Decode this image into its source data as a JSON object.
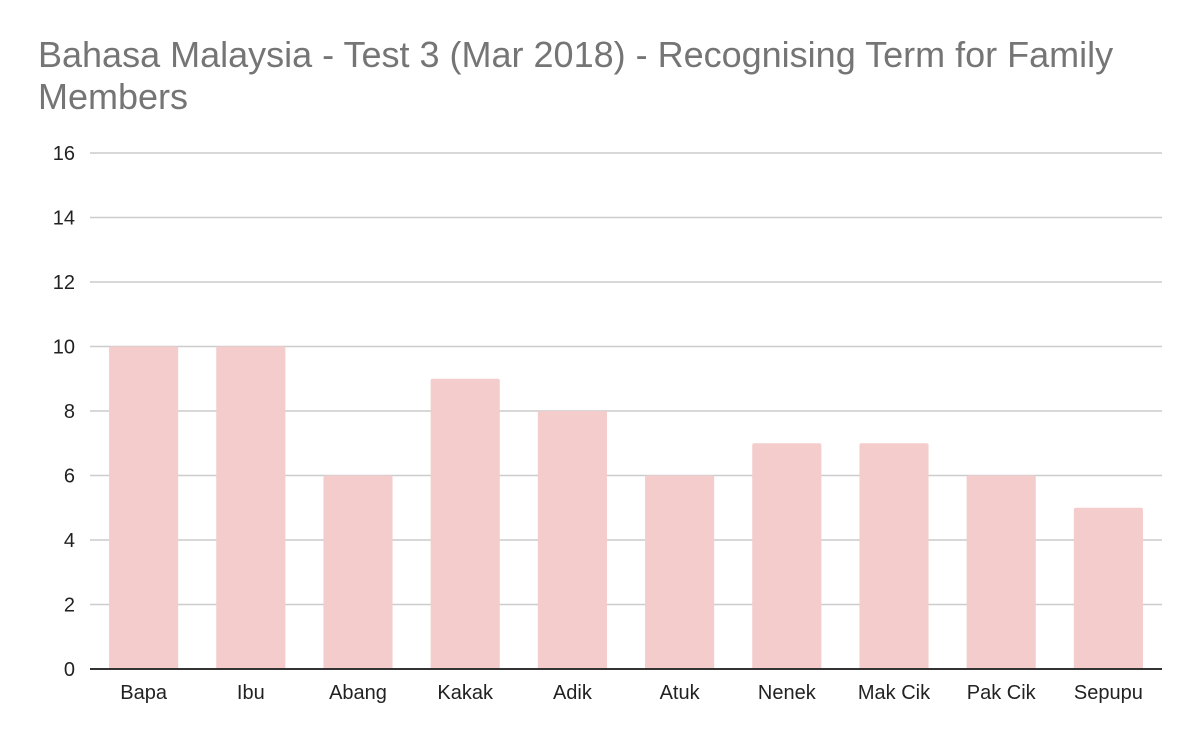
{
  "chart_data": {
    "type": "bar",
    "title": "Bahasa Malaysia - Test 3 (Mar 2018) - Recognising Term for Family Members",
    "xlabel": "",
    "ylabel": "",
    "categories": [
      "Bapa",
      "Ibu",
      "Abang",
      "Kakak",
      "Adik",
      "Atuk",
      "Nenek",
      "Mak Cik",
      "Pak Cik",
      "Sepupu"
    ],
    "values": [
      10,
      10,
      6,
      9,
      8,
      6,
      7,
      7,
      6,
      5
    ],
    "ylim": [
      0,
      16
    ],
    "yticks": [
      0,
      2,
      4,
      6,
      8,
      10,
      12,
      14,
      16
    ],
    "grid": true,
    "legend": "none",
    "colors": {
      "bar": "#f4cccc",
      "grid": "#cccccc",
      "axis": "#333333",
      "title": "#757575"
    }
  }
}
